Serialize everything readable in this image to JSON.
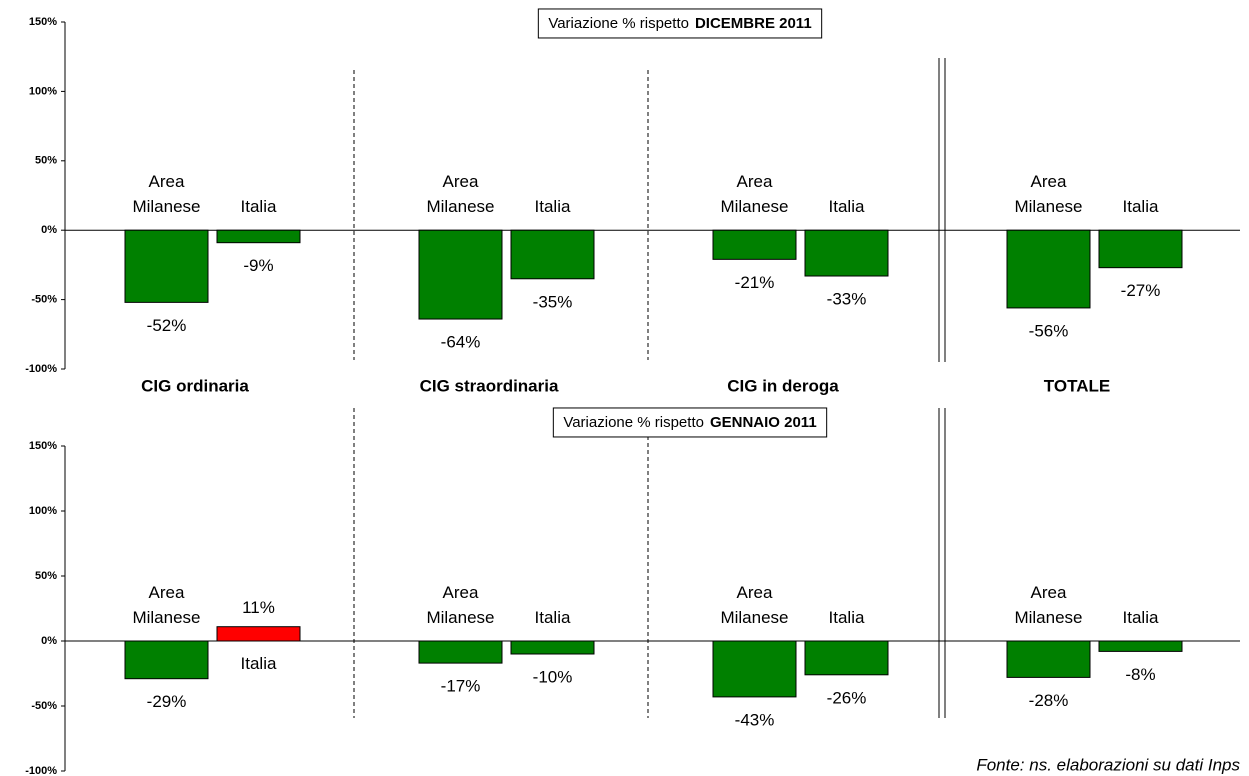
{
  "groups": [
    "CIG ordinaria",
    "CIG straordinaria",
    "CIG in deroga",
    "TOTALE"
  ],
  "source": "Fonte: ns. elaborazioni su dati Inps",
  "chart_data": [
    {
      "type": "bar",
      "title": "Variazione % rispetto",
      "title_emphasis": "DICEMBRE 2011",
      "ylim": [
        -100,
        150
      ],
      "yticks": [
        {
          "value": -100,
          "label": "-100%"
        },
        {
          "value": -50,
          "label": "-50%"
        },
        {
          "value": 0,
          "label": "0%"
        },
        {
          "value": 50,
          "label": "50%"
        },
        {
          "value": 100,
          "label": "100%"
        },
        {
          "value": 150,
          "label": "150%"
        }
      ],
      "series": [
        {
          "name": "Area Milanese",
          "color": "#008000",
          "values": [
            -52,
            -64,
            -21,
            -56
          ],
          "value_labels": [
            "-52%",
            "-64%",
            "-21%",
            "-56%"
          ]
        },
        {
          "name": "Italia",
          "color": "#008000",
          "values": [
            -9,
            -35,
            -33,
            -27
          ],
          "value_labels": [
            "-9%",
            "-35%",
            "-33%",
            "-27%"
          ]
        }
      ]
    },
    {
      "type": "bar",
      "title": "Variazione % rispetto",
      "title_emphasis": "GENNAIO 2011",
      "ylim": [
        -100,
        150
      ],
      "yticks": [
        {
          "value": -100,
          "label": "-100%"
        },
        {
          "value": -50,
          "label": "-50%"
        },
        {
          "value": 0,
          "label": "0%"
        },
        {
          "value": 50,
          "label": "50%"
        },
        {
          "value": 100,
          "label": "100%"
        },
        {
          "value": 150,
          "label": "150%"
        }
      ],
      "series": [
        {
          "name": "Area Milanese",
          "color": "#008000",
          "values": [
            -29,
            -17,
            -43,
            -28
          ],
          "value_labels": [
            "-29%",
            "-17%",
            "-43%",
            "-28%"
          ]
        },
        {
          "name": "Italia",
          "color": "#008000",
          "colors": [
            "#ff0000",
            "#008000",
            "#008000",
            "#008000"
          ],
          "values": [
            11,
            -10,
            -26,
            -8
          ],
          "value_labels": [
            "11%",
            "-10%",
            "-26%",
            "-8%"
          ]
        }
      ]
    }
  ]
}
